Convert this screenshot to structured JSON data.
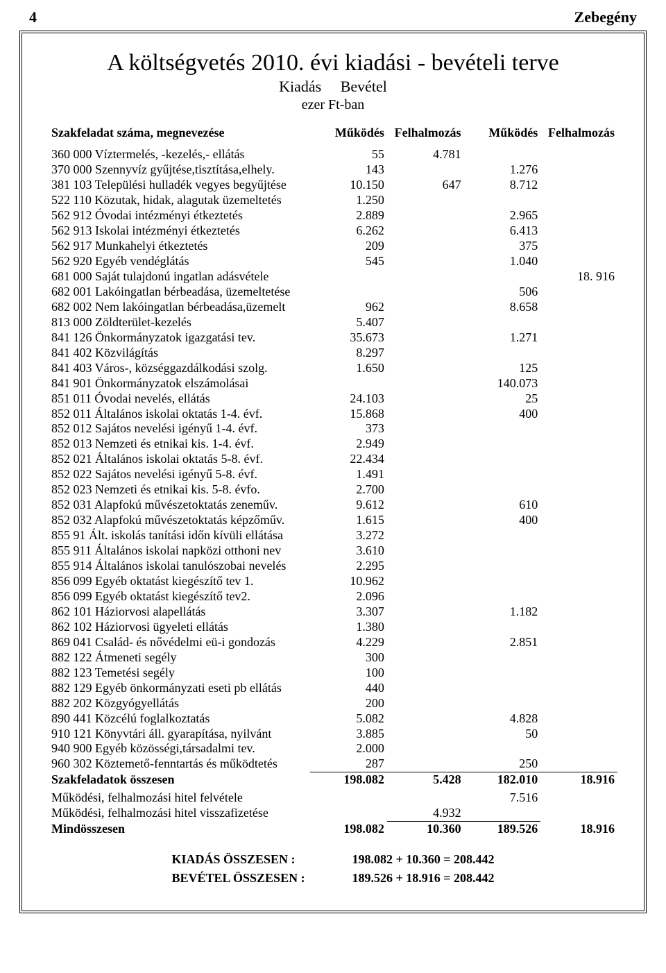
{
  "page_number": "4",
  "locality": "Zebegény",
  "title": "A költségvetés 2010. évi kiadási - bevételi terve",
  "sub1a": "Kiadás",
  "sub1b": "Bevétel",
  "sub2": "ezer Ft-ban",
  "col_header_label": "Szakfeladat száma, megnevezése",
  "col_headers": [
    "Működés",
    "Felhalmozás",
    "Működés",
    "Felhalmozás"
  ],
  "rows": [
    {
      "label": "360 000 Víztermelés, -kezelés,- ellátás",
      "c": [
        "55",
        "4.781",
        "",
        ""
      ]
    },
    {
      "label": "370 000 Szennyvíz gyűjtése,tisztítása,elhely.",
      "c": [
        "143",
        "",
        "1.276",
        ""
      ]
    },
    {
      "label": "381 103 Települési hulladék vegyes begyűjtése",
      "c": [
        "10.150",
        "647",
        "8.712",
        ""
      ]
    },
    {
      "label": "522 110 Közutak, hidak, alagutak üzemeltetés",
      "c": [
        "1.250",
        "",
        "",
        ""
      ]
    },
    {
      "label": "562 912 Óvodai intézményi étkeztetés",
      "c": [
        "2.889",
        "",
        "2.965",
        ""
      ]
    },
    {
      "label": "562 913 Iskolai intézményi étkeztetés",
      "c": [
        "6.262",
        "",
        "6.413",
        ""
      ]
    },
    {
      "label": "562 917 Munkahelyi étkeztetés",
      "c": [
        "209",
        "",
        "375",
        ""
      ]
    },
    {
      "label": "562 920 Egyéb vendéglátás",
      "c": [
        "545",
        "",
        "1.040",
        ""
      ]
    },
    {
      "label": "681 000 Saját tulajdonú ingatlan adásvétele",
      "c": [
        "",
        "",
        "",
        "18. 916"
      ]
    },
    {
      "label": "682 001 Lakóingatlan bérbeadása, üzemeltetése",
      "c": [
        "",
        "",
        "506",
        ""
      ]
    },
    {
      "label": "682 002 Nem lakóingatlan bérbeadása,üzemelt",
      "c": [
        "962",
        "",
        "8.658",
        ""
      ]
    },
    {
      "label": "813 000 Zöldterület-kezelés",
      "c": [
        "5.407",
        "",
        "",
        ""
      ]
    },
    {
      "label": "841 126 Önkormányzatok igazgatási tev.",
      "c": [
        "35.673",
        "",
        "1.271",
        ""
      ]
    },
    {
      "label": "841 402 Közvilágítás",
      "c": [
        "8.297",
        "",
        "",
        ""
      ]
    },
    {
      "label": "841 403 Város-, községgazdálkodási szolg.",
      "c": [
        "1.650",
        "",
        "125",
        ""
      ]
    },
    {
      "label": "841 901 Önkormányzatok elszámolásai",
      "c": [
        "",
        "",
        "140.073",
        ""
      ]
    },
    {
      "label": "851 011 Óvodai nevelés, ellátás",
      "c": [
        "24.103",
        "",
        "25",
        ""
      ]
    },
    {
      "label": "852 011 Általános iskolai oktatás 1-4. évf.",
      "c": [
        "15.868",
        "",
        "400",
        ""
      ]
    },
    {
      "label": "852 012 Sajátos nevelési igényű 1-4. évf.",
      "c": [
        "373",
        "",
        "",
        ""
      ]
    },
    {
      "label": "852 013 Nemzeti és etnikai kis. 1-4. évf.",
      "c": [
        "2.949",
        "",
        "",
        ""
      ]
    },
    {
      "label": "852 021 Általános iskolai oktatás 5-8. évf.",
      "c": [
        "22.434",
        "",
        "",
        ""
      ]
    },
    {
      "label": "852 022 Sajátos nevelési igényű 5-8. évf.",
      "c": [
        "1.491",
        "",
        "",
        ""
      ]
    },
    {
      "label": "852 023 Nemzeti és etnikai kis. 5-8. évfo.",
      "c": [
        "2.700",
        "",
        "",
        ""
      ]
    },
    {
      "label": "852 031 Alapfokú művészetoktatás zeneműv.",
      "c": [
        "9.612",
        "",
        "610",
        ""
      ]
    },
    {
      "label": "852 032 Alapfokú művészetoktatás képzőműv.",
      "c": [
        "1.615",
        "",
        "400",
        ""
      ]
    },
    {
      "label": "855 91 Ált. iskolás tanítási időn kívüli ellátása",
      "c": [
        "3.272",
        "",
        "",
        ""
      ]
    },
    {
      "label": "855 911 Általános iskolai napközi otthoni nev",
      "c": [
        "3.610",
        "",
        "",
        ""
      ]
    },
    {
      "label": "855 914 Általános iskolai tanulószobai nevelés",
      "c": [
        "2.295",
        "",
        "",
        ""
      ]
    },
    {
      "label": "856 099 Egyéb oktatást kiegészítő tev 1.",
      "c": [
        "10.962",
        "",
        "",
        ""
      ]
    },
    {
      "label": "856 099 Egyéb oktatást kiegészítő tev2.",
      "c": [
        "2.096",
        "",
        "",
        ""
      ]
    },
    {
      "label": "862 101 Háziorvosi alapellátás",
      "c": [
        "3.307",
        "",
        "1.182",
        ""
      ]
    },
    {
      "label": "862 102 Háziorvosi ügyeleti ellátás",
      "c": [
        "1.380",
        "",
        "",
        ""
      ]
    },
    {
      "label": "869 041 Család- és nővédelmi eü-i gondozás",
      "c": [
        "4.229",
        "",
        "2.851",
        ""
      ]
    },
    {
      "label": "882 122 Átmeneti segély",
      "c": [
        "300",
        "",
        "",
        ""
      ]
    },
    {
      "label": "882 123 Temetési segély",
      "c": [
        "100",
        "",
        "",
        ""
      ]
    },
    {
      "label": "882 129 Egyéb önkormányzati eseti pb ellátás",
      "c": [
        "440",
        "",
        "",
        ""
      ]
    },
    {
      "label": "882 202 Közgyógyellátás",
      "c": [
        "200",
        "",
        "",
        ""
      ]
    },
    {
      "label": "890 441 Közcélú foglalkoztatás",
      "c": [
        "5.082",
        "",
        "4.828",
        ""
      ]
    },
    {
      "label": "910 121 Könyvtári áll. gyarapítása, nyilvánt",
      "c": [
        "3.885",
        "",
        "50",
        ""
      ]
    },
    {
      "label": "940 900 Egyéb közösségi,társadalmi tev.",
      "c": [
        "2.000",
        "",
        "",
        ""
      ]
    },
    {
      "label": "960 302 Köztemető-fenntartás és működtetés",
      "c": [
        "287",
        "",
        "250",
        ""
      ]
    }
  ],
  "sum_row": {
    "label": "Szakfeladatok összesen",
    "c": [
      "198.082",
      "5.428",
      "182.010",
      "18.916"
    ]
  },
  "extra_rows": [
    {
      "label": "Működési, felhalmozási hitel felvétele",
      "c": [
        "",
        "",
        "7.516",
        ""
      ]
    },
    {
      "label": "Működési, felhalmozási hitel visszafizetése",
      "c": [
        "",
        "4.932",
        "",
        ""
      ]
    }
  ],
  "grand_row": {
    "label": "Mindösszesen",
    "c": [
      "198.082",
      "10.360",
      "189.526",
      "18.916"
    ]
  },
  "totals": [
    {
      "label": "KIADÁS ÖSSZESEN :",
      "value": "198.082 + 10.360 = 208.442"
    },
    {
      "label": "BEVÉTEL ÖSSZESEN :",
      "value": "189.526 + 18.916 = 208.442"
    }
  ]
}
